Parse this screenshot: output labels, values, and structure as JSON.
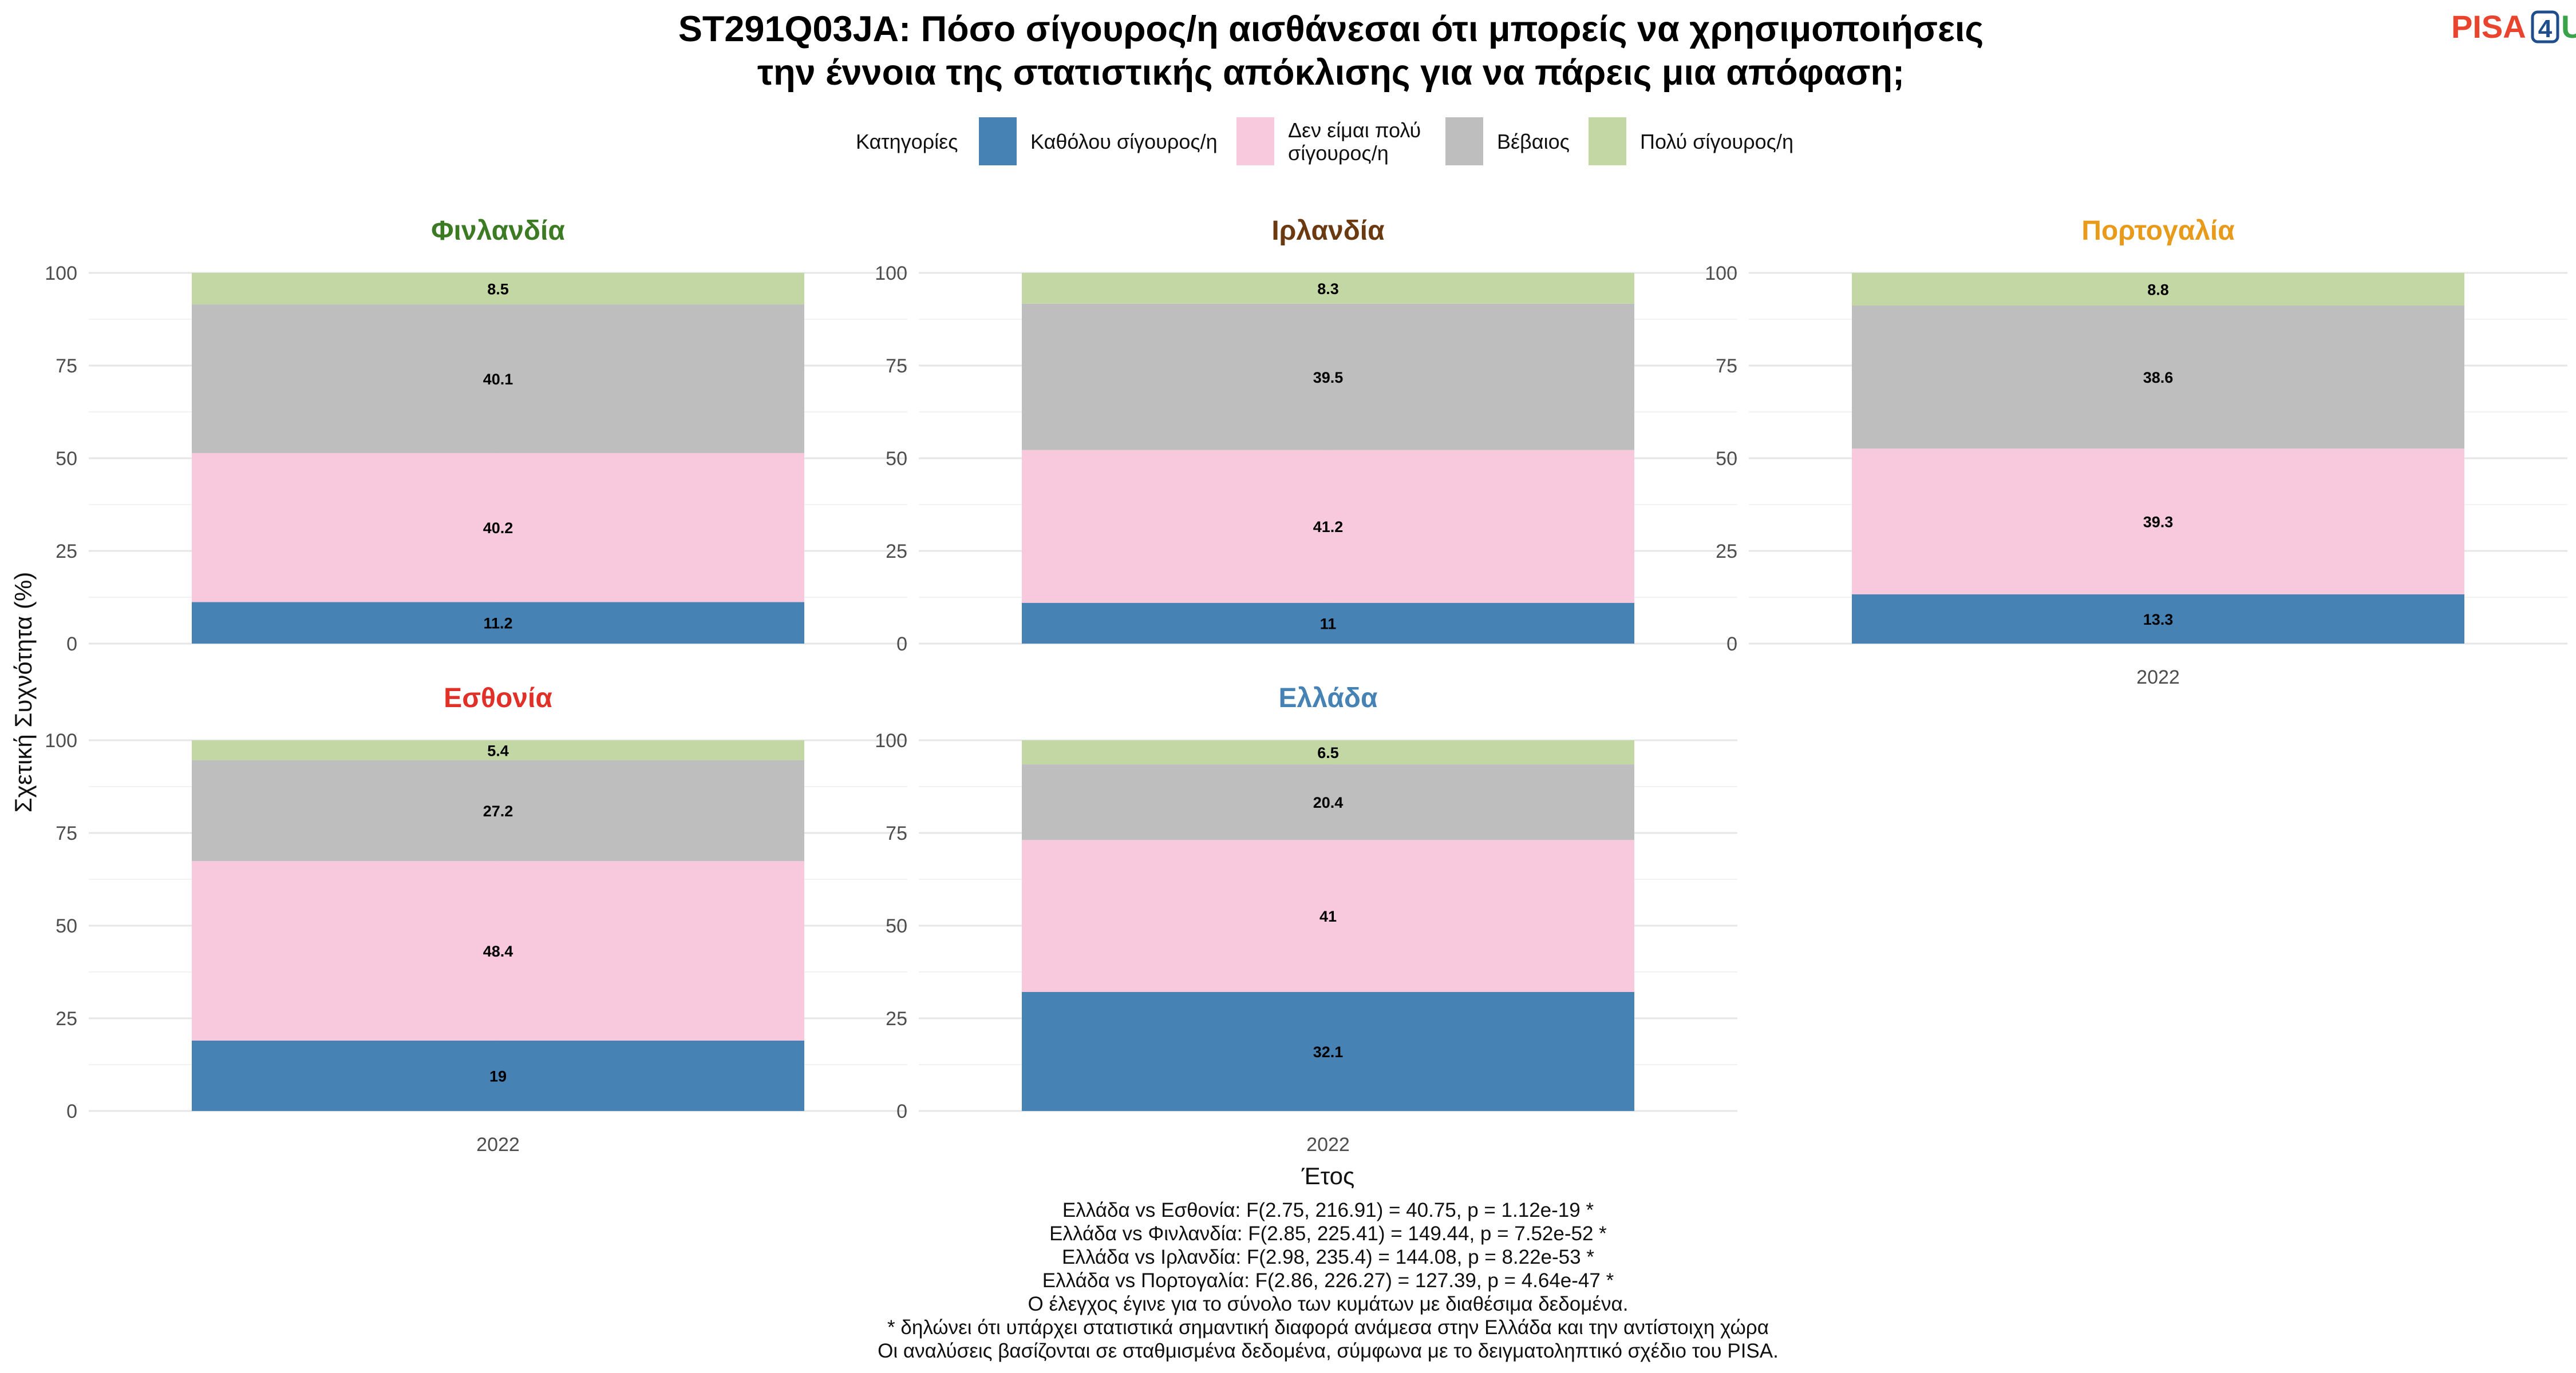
{
  "title_lines": [
    "ST291Q03JA: Πόσο σίγουρος/η αισθάνεσαι ότι μπορείς να χρησιμοποιήσεις",
    "την έννοια της στατιστικής απόκλισης για να πάρεις μια απόφαση;"
  ],
  "logo": {
    "part1": "PISA",
    "part2": "4",
    "part3": "U",
    "color1": "#e8442e",
    "color2": "#1f4e8c",
    "color3": "#3aa34a"
  },
  "legend": {
    "title": "Κατηγορίες",
    "items": [
      {
        "lines": [
          "Καθόλου σίγουρος/η"
        ],
        "color": "#4682b4"
      },
      {
        "lines": [
          "Δεν είμαι πολύ",
          "σίγουρος/η"
        ],
        "color": "#f8c8dc"
      },
      {
        "lines": [
          "Βέβαιος"
        ],
        "color": "#bebebe"
      },
      {
        "lines": [
          "Πολύ σίγουρος/η"
        ],
        "color": "#c3d7a4"
      }
    ]
  },
  "chart_data": {
    "type": "bar",
    "stacked": true,
    "xlabel": "Έτος",
    "ylabel": "Σχετική Συχνότητα (%)",
    "ylim": [
      0,
      100
    ],
    "yticks": [
      0,
      25,
      50,
      75,
      100
    ],
    "grid": true,
    "legend_position": "top",
    "categories": [
      "2022"
    ],
    "series_names": [
      "Καθόλου σίγουρος/η",
      "Δεν είμαι πολύ σίγουρος/η",
      "Βέβαιος",
      "Πολύ σίγουρος/η"
    ],
    "facets": [
      {
        "name": "Φινλανδία",
        "color": "#3d7a24",
        "values": [
          11.2,
          40.2,
          40.1,
          8.5
        ]
      },
      {
        "name": "Ιρλανδία",
        "color": "#6b3a10",
        "values": [
          11,
          41.2,
          39.5,
          8.3
        ]
      },
      {
        "name": "Πορτογαλία",
        "color": "#e89a1b",
        "values": [
          13.3,
          39.3,
          38.6,
          8.8
        ]
      },
      {
        "name": "Εσθονία",
        "color": "#e03027",
        "values": [
          19,
          48.4,
          27.2,
          5.4
        ]
      },
      {
        "name": "Ελλάδα",
        "color": "#4682b4",
        "values": [
          32.1,
          41,
          20.4,
          6.5
        ]
      }
    ]
  },
  "notes": [
    "Ελλάδα vs Εσθονία: F(2.75, 216.91) = 40.75, p = 1.12e-19 *",
    "Ελλάδα vs Φινλανδία: F(2.85, 225.41) = 149.44, p = 7.52e-52 *",
    "Ελλάδα vs Ιρλανδία: F(2.98, 235.4) = 144.08, p = 8.22e-53 *",
    "Ελλάδα vs Πορτογαλία: F(2.86, 226.27) = 127.39, p = 4.64e-47 *",
    "Ο έλεγχος έγινε για το σύνολο των κυμάτων με διαθέσιμα δεδομένα.",
    "* δηλώνει ότι υπάρχει στατιστικά σημαντική διαφορά ανάμεσα στην Ελλάδα και την αντίστοιχη χώρα",
    "Οι αναλύσεις βασίζονται σε σταθμισμένα δεδομένα, σύμφωνα με το δειγματοληπτικό σχέδιο του PISA."
  ]
}
